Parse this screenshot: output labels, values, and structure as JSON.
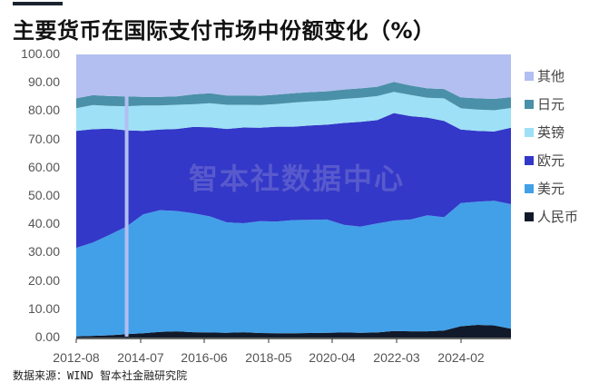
{
  "title": "主要货币在国际支付市场中份额变化（%）",
  "source": "数据来源：WIND 智本社金融研究院",
  "watermark": "智本社数据中心",
  "colors": {
    "other": "#b2bff0",
    "jpy": "#4a90a8",
    "gbp": "#9ee0f5",
    "eur": "#3338c8",
    "usd": "#42a0e8",
    "cny": "#111a2a"
  },
  "legend": [
    {
      "label": "其他",
      "color": "#b2bff0"
    },
    {
      "label": "日元",
      "color": "#4a90a8"
    },
    {
      "label": "英镑",
      "color": "#9ee0f5"
    },
    {
      "label": "欧元",
      "color": "#3338c8"
    },
    {
      "label": "美元",
      "color": "#42a0e8"
    },
    {
      "label": "人民币",
      "color": "#111a2a"
    }
  ],
  "chart_data": {
    "type": "area",
    "stacked": true,
    "title": "主要货币在国际支付市场中份额变化（%）",
    "xlabel": "",
    "ylabel": "",
    "ylim": [
      0,
      100
    ],
    "yticks": [
      "100.00",
      "90.00",
      "80.00",
      "70.00",
      "60.00",
      "50.00",
      "40.00",
      "30.00",
      "20.00",
      "10.00",
      "0.00"
    ],
    "xticks": [
      "2012-08",
      "2014-07",
      "2016-06",
      "2018-05",
      "2020-04",
      "2022-03",
      "2024-02"
    ],
    "legend_position": "right",
    "grid": false,
    "x": [
      "2012-08",
      "2013-02",
      "2013-08",
      "2014-01",
      "2014-07",
      "2015-01",
      "2015-07",
      "2016-01",
      "2016-06",
      "2017-01",
      "2017-07",
      "2017-12",
      "2018-05",
      "2018-11",
      "2019-05",
      "2019-11",
      "2020-04",
      "2020-10",
      "2021-04",
      "2021-09",
      "2022-03",
      "2022-09",
      "2023-03",
      "2023-08",
      "2024-02",
      "2024-08",
      "2024-12"
    ],
    "series": [
      {
        "name": "人民币",
        "values": [
          0.4,
          0.6,
          0.8,
          1.2,
          1.5,
          2.0,
          2.2,
          1.9,
          1.8,
          1.7,
          1.9,
          1.6,
          1.5,
          1.5,
          1.6,
          1.7,
          1.8,
          1.7,
          1.8,
          2.3,
          2.2,
          2.2,
          2.5,
          4.0,
          4.5,
          4.3,
          3.1
        ]
      },
      {
        "name": "美元",
        "values": [
          31.3,
          33.0,
          35.5,
          38.0,
          42.0,
          43.0,
          42.5,
          42.0,
          41.0,
          39.0,
          38.5,
          39.5,
          39.5,
          40.0,
          40.0,
          40.0,
          38.0,
          37.5,
          38.5,
          39.0,
          39.5,
          41.0,
          40.0,
          43.5,
          43.5,
          44.0,
          44.0
        ]
      },
      {
        "name": "欧元",
        "values": [
          41.3,
          40.0,
          37.5,
          34.0,
          29.5,
          28.5,
          29.0,
          30.5,
          31.5,
          33.0,
          33.8,
          33.0,
          33.5,
          33.0,
          33.3,
          33.5,
          36.0,
          37.0,
          36.5,
          38.0,
          36.5,
          34.5,
          34.0,
          26.0,
          25.0,
          24.5,
          27.0
        ]
      },
      {
        "name": "英镑",
        "values": [
          8.0,
          8.5,
          8.0,
          8.5,
          9.0,
          8.5,
          8.5,
          8.0,
          8.5,
          8.5,
          8.0,
          8.0,
          8.0,
          8.5,
          8.5,
          8.5,
          8.5,
          8.5,
          8.5,
          7.5,
          7.5,
          7.0,
          8.0,
          7.5,
          7.5,
          7.5,
          7.0
        ]
      },
      {
        "name": "日元",
        "values": [
          3.5,
          3.5,
          3.5,
          3.5,
          3.0,
          3.0,
          3.0,
          3.5,
          3.5,
          3.3,
          3.3,
          3.3,
          3.3,
          3.3,
          3.3,
          3.3,
          3.3,
          3.3,
          3.3,
          3.5,
          3.3,
          3.3,
          3.3,
          3.8,
          4.0,
          4.0,
          3.8
        ]
      },
      {
        "name": "其他",
        "values": [
          15.5,
          14.4,
          14.7,
          14.8,
          15.0,
          15.0,
          14.8,
          14.1,
          13.7,
          14.5,
          14.5,
          14.6,
          14.2,
          13.7,
          13.3,
          13.0,
          12.4,
          12.0,
          11.4,
          9.7,
          11.0,
          12.0,
          12.2,
          15.2,
          15.5,
          15.7,
          15.1
        ]
      }
    ],
    "annotations": [
      "2014-02 anomaly: near-zero spike where all series drop and '其他' fills to 100"
    ]
  }
}
